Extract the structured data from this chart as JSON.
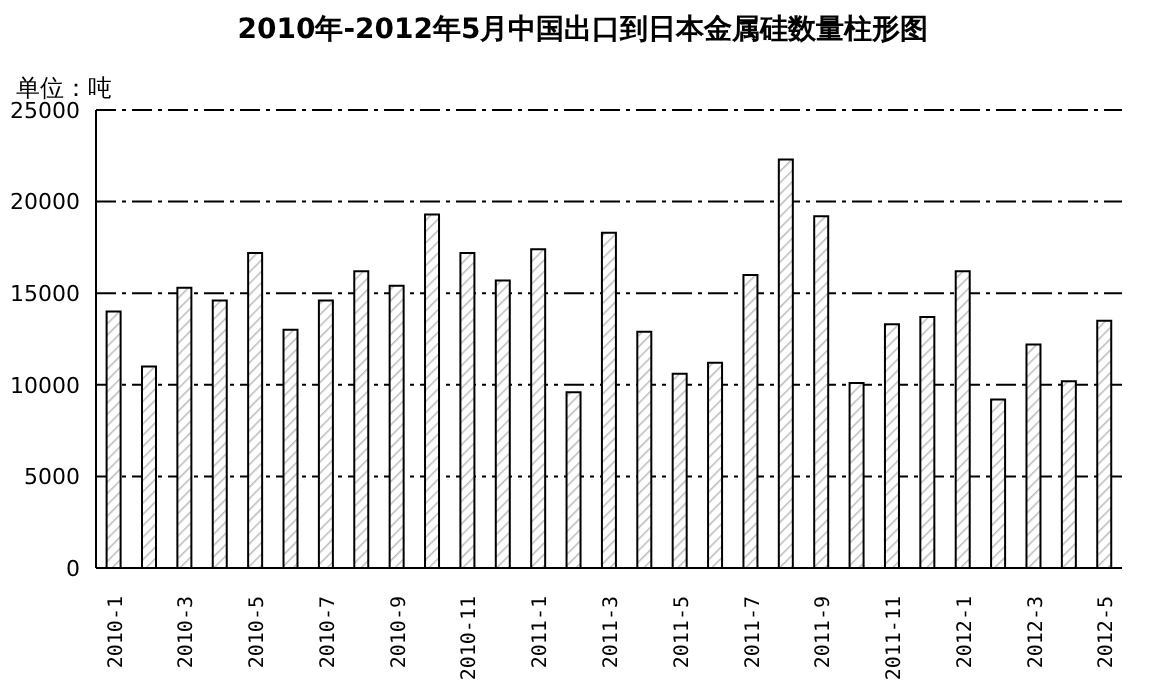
{
  "chart_data": {
    "type": "bar",
    "title": "2010年-2012年5月中国出口到日本金属硅数量柱形图",
    "ylabel": "单位：吨",
    "categories": [
      "2010-1",
      null,
      "2010-3",
      null,
      "2010-5",
      null,
      "2010-7",
      null,
      "2010-9",
      null,
      "2010-11",
      null,
      "2011-1",
      null,
      "2011-3",
      null,
      "2011-5",
      null,
      "2011-7",
      null,
      "2011-9",
      null,
      "2011-11",
      null,
      "2012-1",
      null,
      "2012-3",
      null,
      "2012-5"
    ],
    "values": [
      14000,
      11000,
      15300,
      14600,
      17200,
      13000,
      14600,
      16200,
      15400,
      19300,
      17200,
      15700,
      17400,
      9600,
      18300,
      12900,
      10600,
      11200,
      16000,
      22300,
      19200,
      10100,
      13300,
      13700,
      16200,
      9200,
      12200,
      10200,
      13500
    ],
    "color": "#000000",
    "ylim": [
      0,
      25000
    ],
    "yticks": [
      0,
      5000,
      10000,
      15000,
      20000,
      25000
    ],
    "grid": "y"
  }
}
